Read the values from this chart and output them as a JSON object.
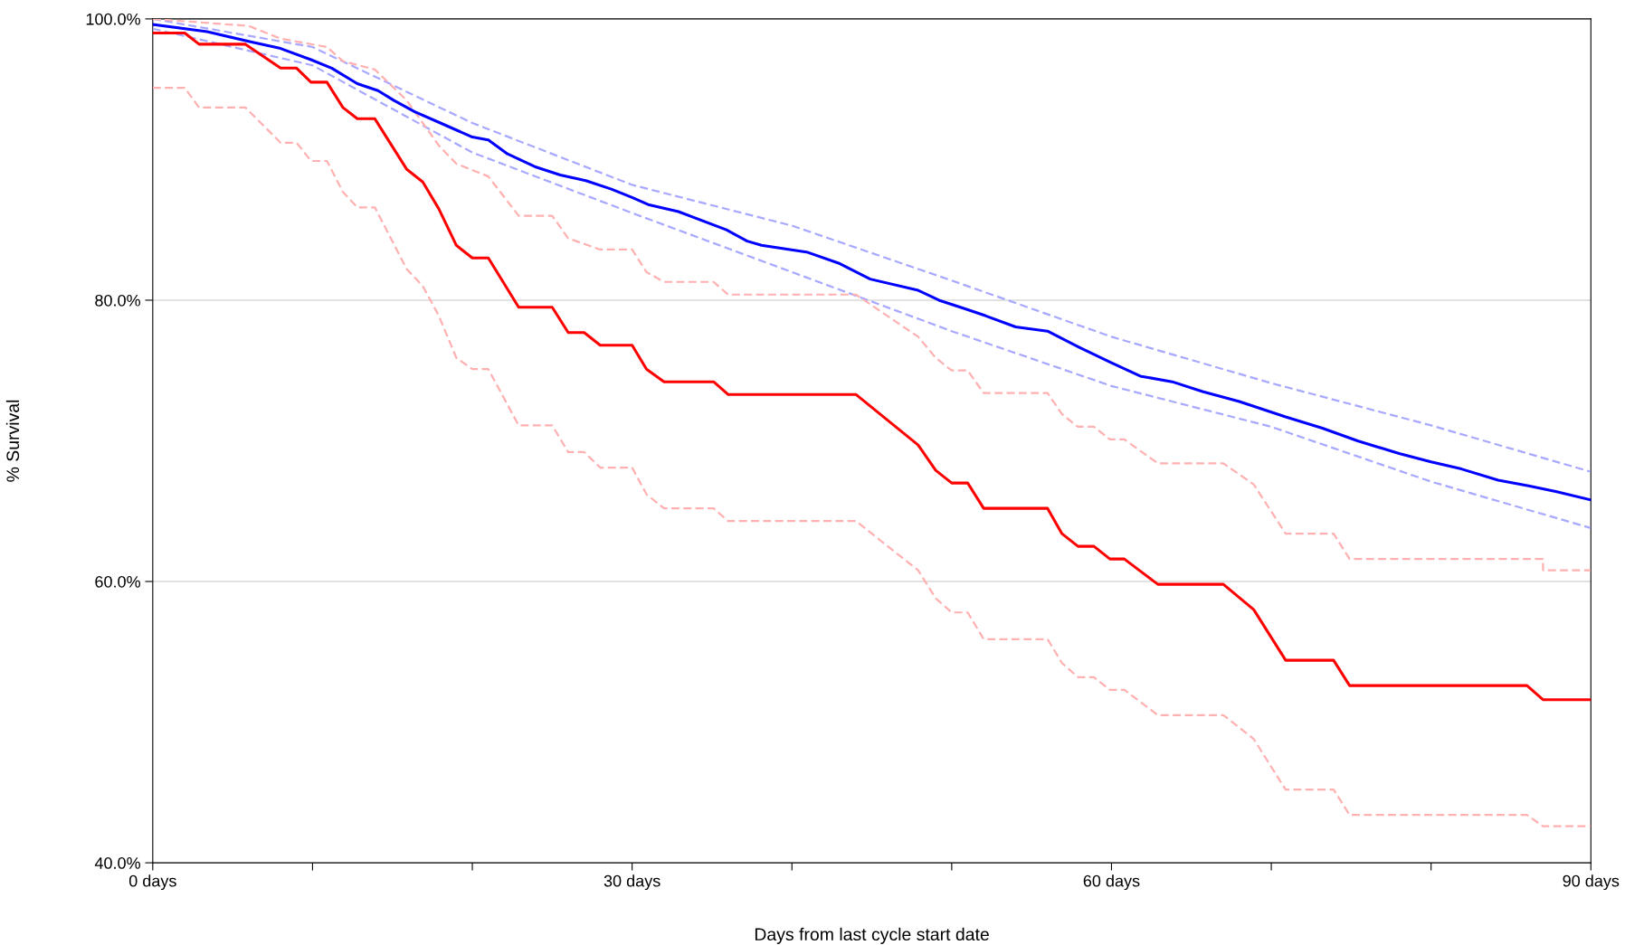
{
  "chart_data": {
    "type": "line",
    "xlabel": "Days from last cycle start date",
    "ylabel": "% Survival",
    "xlim": [
      0,
      90
    ],
    "ylim": [
      40,
      100
    ],
    "xticks": [
      {
        "value": 0,
        "label": "0 days"
      },
      {
        "value": 10,
        "label": null
      },
      {
        "value": 20,
        "label": null
      },
      {
        "value": 30,
        "label": "30 days"
      },
      {
        "value": 40,
        "label": null
      },
      {
        "value": 50,
        "label": null
      },
      {
        "value": 60,
        "label": "60 days"
      },
      {
        "value": 70,
        "label": null
      },
      {
        "value": 80,
        "label": null
      },
      {
        "value": 90,
        "label": "90 days"
      }
    ],
    "yticks": [
      {
        "value": 40,
        "label": "40.0%"
      },
      {
        "value": 60,
        "label": "60.0%"
      },
      {
        "value": 80,
        "label": "80.0%"
      },
      {
        "value": 100,
        "label": "100.0%"
      }
    ],
    "grid": "y",
    "legend": false,
    "marker": "none",
    "series": [
      {
        "color": "#a8a8ff",
        "line_style": "dashed",
        "x": [
          0,
          10,
          20,
          30,
          40,
          50,
          60,
          70,
          80,
          90
        ],
        "values": [
          100,
          98.0,
          92.6,
          88.2,
          85.3,
          81.4,
          77.4,
          74.1,
          71.1,
          67.8
        ]
      },
      {
        "color": "#a8a8ff",
        "line_style": "dashed",
        "x": [
          0,
          10,
          20,
          30,
          40,
          50,
          60,
          70,
          80,
          90
        ],
        "values": [
          99.3,
          96.7,
          90.5,
          86.2,
          82.0,
          77.8,
          73.9,
          71.0,
          67.1,
          63.8
        ]
      },
      {
        "color": "#ffb0b0",
        "line_style": "dashed",
        "x": [
          0,
          6,
          8,
          10.9,
          11.9,
          13.9,
          15.9,
          17.9,
          19,
          21,
          22.9,
          25,
          26,
          28,
          30,
          30.9,
          32,
          35.1,
          36,
          44,
          47.9,
          49,
          50,
          51,
          52,
          56,
          56.9,
          57.9,
          58.9,
          59.9,
          60.8,
          62.9,
          67,
          68.9,
          70.9,
          73.9,
          74.9,
          87,
          87.01,
          90
        ],
        "values": [
          100,
          99.5,
          98.6,
          98,
          97,
          96.4,
          94.2,
          91.0,
          89.7,
          88.8,
          86.0,
          86.0,
          84.4,
          83.6,
          83.6,
          82.0,
          81.3,
          81.3,
          80.4,
          80.4,
          77.4,
          75.9,
          75.0,
          75.0,
          73.4,
          73.4,
          71.9,
          71.0,
          71.0,
          70.1,
          70.1,
          68.4,
          68.4,
          66.9,
          63.4,
          63.4,
          61.6,
          61.6,
          60.8,
          60.8
        ]
      },
      {
        "color": "#ffb0b0",
        "line_style": "dashed",
        "x": [
          0,
          2,
          2.9,
          5.8,
          8,
          9,
          9.9,
          10.9,
          11.9,
          12.8,
          13.9,
          15.9,
          16.9,
          17.9,
          19,
          20,
          21,
          22.9,
          25,
          26,
          27,
          28,
          30,
          30.9,
          32,
          35.1,
          36,
          44,
          47.9,
          49,
          50,
          51,
          52,
          56,
          56.9,
          57.9,
          58.9,
          59.9,
          60.8,
          62.9,
          67,
          68.9,
          70.9,
          73.9,
          74.9,
          86,
          87,
          90
        ],
        "values": [
          95.1,
          95.1,
          93.7,
          93.7,
          91.2,
          91.2,
          89.9,
          89.9,
          87.7,
          86.6,
          86.6,
          82.2,
          81.0,
          78.9,
          75.9,
          75.1,
          75.1,
          71.1,
          71.1,
          69.2,
          69.2,
          68.1,
          68.1,
          66.2,
          65.2,
          65.2,
          64.3,
          64.3,
          60.8,
          58.8,
          57.8,
          57.8,
          55.9,
          55.9,
          54.2,
          53.2,
          53.2,
          52.3,
          52.3,
          50.5,
          50.5,
          48.8,
          45.2,
          45.2,
          43.4,
          43.4,
          42.6,
          42.6
        ]
      },
      {
        "color": "#0000ff",
        "line_style": "solid",
        "x": [
          0,
          3.4,
          6,
          8,
          9.9,
          11.2,
          12.8,
          14.1,
          15.1,
          16.4,
          18,
          20,
          21,
          22.2,
          23.9,
          25.5,
          27.1,
          28.7,
          30,
          31,
          32.9,
          35.9,
          37.2,
          38.1,
          41,
          43,
          44.9,
          47.9,
          49.2,
          50.8,
          52.1,
          54,
          56,
          57.9,
          59.9,
          61.8,
          63.8,
          65.7,
          68,
          70.9,
          73.2,
          75.4,
          78,
          80,
          81.9,
          84.2,
          86.1,
          87.8,
          90
        ],
        "values": [
          99.6,
          99.1,
          98.4,
          97.9,
          97.1,
          96.5,
          95.4,
          94.9,
          94.2,
          93.4,
          92.6,
          91.6,
          91.4,
          90.4,
          89.5,
          88.9,
          88.5,
          87.9,
          87.3,
          86.8,
          86.3,
          85.0,
          84.2,
          83.9,
          83.4,
          82.6,
          81.5,
          80.7,
          80.0,
          79.4,
          78.9,
          78.1,
          77.8,
          76.7,
          75.6,
          74.6,
          74.2,
          73.5,
          72.8,
          71.7,
          70.9,
          70.0,
          69.1,
          68.5,
          68.0,
          67.2,
          66.8,
          66.4,
          65.8
        ]
      },
      {
        "color": "#ff0000",
        "line_style": "solid",
        "x": [
          0,
          2,
          2.9,
          5.8,
          8,
          9,
          9.9,
          10.9,
          11.9,
          12.8,
          13.9,
          15.9,
          16.9,
          17.9,
          19,
          20,
          21,
          22.9,
          25,
          26,
          27,
          28,
          30,
          30.9,
          32,
          35.1,
          36,
          44,
          47.9,
          49,
          50,
          51,
          52,
          56,
          56.9,
          57.9,
          58.9,
          59.9,
          60.8,
          62.9,
          67,
          68.9,
          70.9,
          73.9,
          74.9,
          86,
          87,
          90
        ],
        "values": [
          99.0,
          99.0,
          98.2,
          98.2,
          96.5,
          96.5,
          95.5,
          95.5,
          93.7,
          92.9,
          92.9,
          89.3,
          88.4,
          86.5,
          83.9,
          83.0,
          83.0,
          79.5,
          79.5,
          77.7,
          77.7,
          76.8,
          76.8,
          75.1,
          74.2,
          74.2,
          73.3,
          73.3,
          69.7,
          67.9,
          67.0,
          67.0,
          65.2,
          65.2,
          63.4,
          62.5,
          62.5,
          61.6,
          61.6,
          59.8,
          59.8,
          58.0,
          54.4,
          54.4,
          52.6,
          52.6,
          51.6,
          51.6
        ]
      }
    ]
  }
}
